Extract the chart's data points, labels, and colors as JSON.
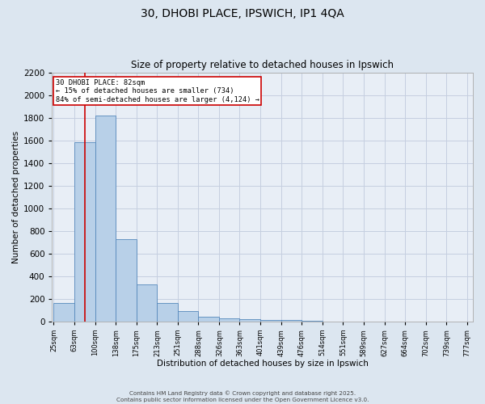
{
  "title_line1": "30, DHOBI PLACE, IPSWICH, IP1 4QA",
  "title_line2": "Size of property relative to detached houses in Ipswich",
  "xlabel": "Distribution of detached houses by size in Ipswich",
  "ylabel": "Number of detached properties",
  "bar_values": [
    160,
    1580,
    1820,
    730,
    330,
    160,
    90,
    45,
    30,
    20,
    15,
    10,
    5,
    0,
    0,
    0,
    0,
    0,
    0,
    0
  ],
  "bin_edges": [
    25,
    63,
    100,
    138,
    175,
    213,
    251,
    288,
    326,
    363,
    401,
    439,
    476,
    514,
    551,
    589,
    627,
    664,
    702,
    739,
    777
  ],
  "x_labels": [
    "25sqm",
    "63sqm",
    "100sqm",
    "138sqm",
    "175sqm",
    "213sqm",
    "251sqm",
    "288sqm",
    "326sqm",
    "363sqm",
    "401sqm",
    "439sqm",
    "476sqm",
    "514sqm",
    "551sqm",
    "589sqm",
    "627sqm",
    "664sqm",
    "702sqm",
    "739sqm",
    "777sqm"
  ],
  "bar_color": "#b8d0e8",
  "bar_edge_color": "#5588bb",
  "red_line_x": 82,
  "annotation_text": "30 DHOBI PLACE: 82sqm\n← 15% of detached houses are smaller (734)\n84% of semi-detached houses are larger (4,124) →",
  "annotation_box_color": "#cc0000",
  "ylim": [
    0,
    2200
  ],
  "yticks": [
    0,
    200,
    400,
    600,
    800,
    1000,
    1200,
    1400,
    1600,
    1800,
    2000,
    2200
  ],
  "footer_line1": "Contains HM Land Registry data © Crown copyright and database right 2025.",
  "footer_line2": "Contains public sector information licensed under the Open Government Licence v3.0.",
  "bg_color": "#dce6f0",
  "plot_bg_color": "#e8eef6",
  "grid_color": "#c5cfe0"
}
